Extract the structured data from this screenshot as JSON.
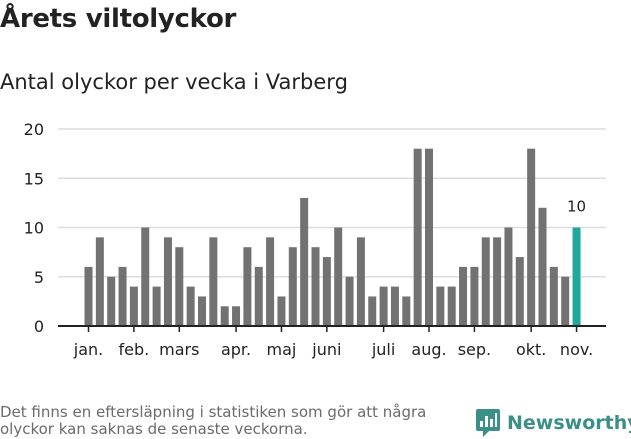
{
  "header": {
    "title": "Årets viltolyckor",
    "subtitle": "Antal olyckor per vecka i Varberg"
  },
  "footer": {
    "note": "Det finns en eftersläpning i statistiken som gör att några olyckor kan saknas de senaste veckorna.",
    "brand": "Newsworthy"
  },
  "colors": {
    "bar": "#727272",
    "highlight": "#1fa99a",
    "grid": "#dddddd",
    "axis": "#222222",
    "brand": "#3a8f87"
  },
  "chart_data": {
    "type": "bar",
    "title": "Årets viltolyckor",
    "subtitle": "Antal olyckor per vecka i Varberg",
    "xlabel": "",
    "ylabel": "",
    "ylim": [
      0,
      20
    ],
    "yticks": [
      0,
      5,
      10,
      15,
      20
    ],
    "grid": true,
    "values": [
      6,
      9,
      5,
      6,
      4,
      10,
      4,
      9,
      8,
      4,
      3,
      9,
      2,
      2,
      8,
      6,
      9,
      3,
      8,
      13,
      8,
      7,
      10,
      5,
      9,
      3,
      4,
      4,
      3,
      18,
      18,
      4,
      4,
      6,
      6,
      9,
      9,
      10,
      7,
      18,
      12,
      6,
      5,
      10
    ],
    "month_labels": [
      {
        "label": "jan.",
        "index": 0
      },
      {
        "label": "feb.",
        "index": 4
      },
      {
        "label": "mars",
        "index": 8
      },
      {
        "label": "apr.",
        "index": 13
      },
      {
        "label": "maj",
        "index": 17
      },
      {
        "label": "juni",
        "index": 21
      },
      {
        "label": "juli",
        "index": 26
      },
      {
        "label": "aug.",
        "index": 30
      },
      {
        "label": "sep.",
        "index": 34
      },
      {
        "label": "okt.",
        "index": 39
      },
      {
        "label": "nov.",
        "index": 43
      }
    ],
    "highlight_index": 43,
    "highlight_label": "10"
  }
}
